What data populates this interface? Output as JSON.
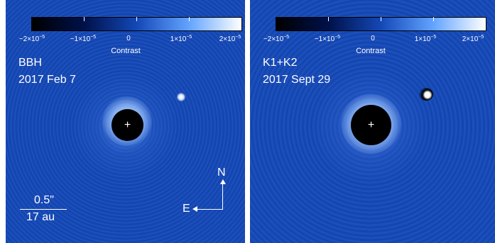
{
  "colorbar": {
    "ticks": [
      "−2×10",
      "−1×10",
      "0",
      "1×10",
      "2×10"
    ],
    "tick_exponents": [
      "−5",
      "−5",
      "",
      "−5",
      "−5"
    ],
    "title": "Contrast",
    "colors": [
      "#000000",
      "#00114a",
      "#1448b6",
      "#63a4ff",
      "#ffffff"
    ]
  },
  "left_panel": {
    "band": "BBH",
    "date": "2017 Feb 7",
    "scale_angular": "0.5\"",
    "scale_physical": "17 au",
    "compass_north": "N",
    "compass_east": "E",
    "center_marker": "+"
  },
  "right_panel": {
    "band": "K1+K2",
    "date": "2017 Sept 29",
    "center_marker": "+"
  },
  "colors": {
    "background_blue": "#1549b8",
    "mask": "#000000",
    "text": "#ffffff"
  }
}
